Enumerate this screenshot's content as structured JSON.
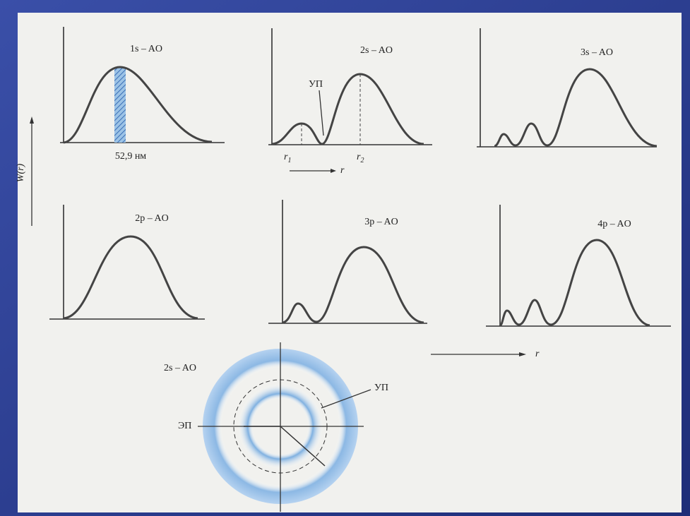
{
  "panels": [
    {
      "title": "1s – AO"
    },
    {
      "title": "2s – AO"
    },
    {
      "title": "3s – AO"
    },
    {
      "title": "2p – AO"
    },
    {
      "title": "3p – AO"
    },
    {
      "title": "4p – AO"
    }
  ],
  "labels": {
    "peak_1s": "52,9 нм",
    "node_2s": "УП",
    "r1": "r",
    "r1_sub": "1",
    "r2": "r",
    "r2_sub": "2",
    "axis_r_top": "r",
    "axis_r_mid": "r",
    "y_axis": "W(r)"
  },
  "cloud": {
    "title": "2s – AO",
    "node": "УП",
    "electron": "ЭП"
  }
}
